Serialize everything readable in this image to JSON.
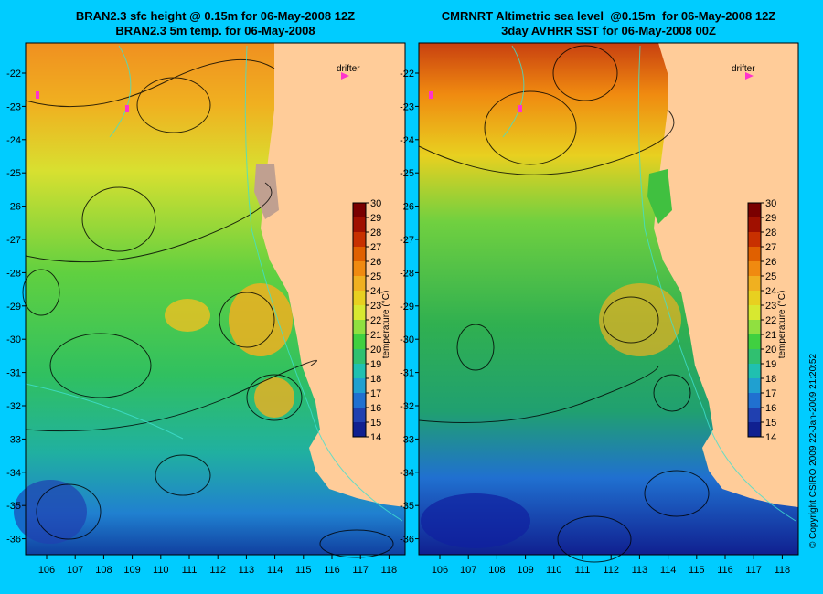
{
  "left_panel": {
    "title_line1": "BRAN2.3 sfc height @ 0.15m for 06-May-2008 12Z",
    "title_line2": "BRAN2.3 5m temp. for 06-May-2008",
    "drifter_label": "drifter",
    "colorbar_title": "temperature (°C)"
  },
  "right_panel": {
    "title_line1": "CMRNRT Altimetric sea level  @0.15m  for 06-May-2008 12Z",
    "title_line2": "3day AVHRR SST for 06-May-2008 00Z",
    "drifter_label": "drifter",
    "colorbar_title": "temperature (°C)"
  },
  "axes": {
    "lon_ticks": [
      "106",
      "107",
      "108",
      "109",
      "110",
      "111",
      "112",
      "113",
      "114",
      "115",
      "116",
      "117",
      "118"
    ],
    "lat_ticks": [
      "-22",
      "-23",
      "-24",
      "-25",
      "-26",
      "-27",
      "-28",
      "-29",
      "-30",
      "-31",
      "-32",
      "-33",
      "-34",
      "-35",
      "-36"
    ]
  },
  "colorbar": {
    "ticks": [
      "30",
      "29",
      "28",
      "27",
      "26",
      "25",
      "24",
      "23",
      "22",
      "21",
      "20",
      "19",
      "18",
      "17",
      "16",
      "15",
      "14"
    ],
    "colors": [
      "#7a0000",
      "#a01000",
      "#c83000",
      "#e06000",
      "#f08a10",
      "#f0b020",
      "#e8d020",
      "#d8e830",
      "#90e040",
      "#40d040",
      "#30c070",
      "#20c0b0",
      "#20a0d0",
      "#2070d0",
      "#2040b0",
      "#102090",
      "#000060"
    ]
  },
  "copyright": "© Copyright CSIRO 2009   22-Jan-2009 21:20:52",
  "colors": {
    "background": "#00ccff",
    "land": "#ffcc99",
    "drifter": "#ff33cc"
  }
}
